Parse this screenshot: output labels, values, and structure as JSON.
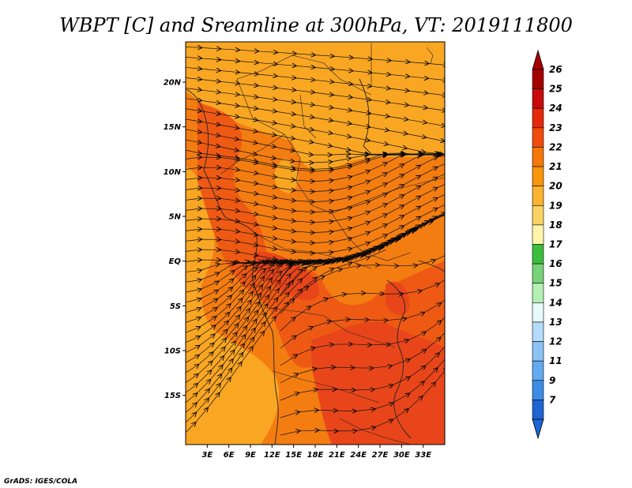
{
  "title": "WBPT [C] and Sreamline at 300hPa, VT: 2019111800",
  "credit": "GrADS: IGES/COLA",
  "map": {
    "lon_range": [
      0,
      36
    ],
    "lat_range": [
      -20.5,
      24.5
    ],
    "lat_ticks": [
      {
        "value": 20,
        "label": "20N"
      },
      {
        "value": 15,
        "label": "15N"
      },
      {
        "value": 10,
        "label": "10N"
      },
      {
        "value": 5,
        "label": "5N"
      },
      {
        "value": 0,
        "label": "EQ"
      },
      {
        "value": -5,
        "label": "5S"
      },
      {
        "value": -10,
        "label": "10S"
      },
      {
        "value": -15,
        "label": "15S"
      }
    ],
    "lon_ticks": [
      {
        "value": 3,
        "label": "3E"
      },
      {
        "value": 6,
        "label": "6E"
      },
      {
        "value": 9,
        "label": "9E"
      },
      {
        "value": 12,
        "label": "12E"
      },
      {
        "value": 15,
        "label": "15E"
      },
      {
        "value": 18,
        "label": "18E"
      },
      {
        "value": 21,
        "label": "21E"
      },
      {
        "value": 24,
        "label": "24E"
      },
      {
        "value": 27,
        "label": "27E"
      },
      {
        "value": 30,
        "label": "30E"
      },
      {
        "value": 33,
        "label": "33E"
      }
    ]
  },
  "colorbar": {
    "levels": [
      {
        "label": "26",
        "color": "#a50000"
      },
      {
        "label": "25",
        "color": "#c80a0a"
      },
      {
        "label": "24",
        "color": "#e6280a"
      },
      {
        "label": "23",
        "color": "#f04b0a"
      },
      {
        "label": "22",
        "color": "#f5780a"
      },
      {
        "label": "21",
        "color": "#fa960a"
      },
      {
        "label": "20",
        "color": "#fab432"
      },
      {
        "label": "19",
        "color": "#fad264"
      },
      {
        "label": "18",
        "color": "#fff5aa"
      },
      {
        "label": "17",
        "color": "#3cbe3c"
      },
      {
        "label": "16",
        "color": "#78d278"
      },
      {
        "label": "15",
        "color": "#b4f0b4"
      },
      {
        "label": "14",
        "color": "#e6fafa"
      },
      {
        "label": "13",
        "color": "#b4dcfa"
      },
      {
        "label": "12",
        "color": "#8cc3f5"
      },
      {
        "label": "11",
        "color": "#64aaf0"
      },
      {
        "label": "9",
        "color": "#3c8ce6"
      },
      {
        "label": "7",
        "color": "#1e64d2"
      }
    ],
    "top_arrow_color": "#a50000",
    "bottom_arrow_color": "#1e64d2"
  },
  "field_colors": {
    "base": "#f47d12",
    "light": "#f9a623",
    "dark": "#ee5a14",
    "red": "#e8461a"
  }
}
